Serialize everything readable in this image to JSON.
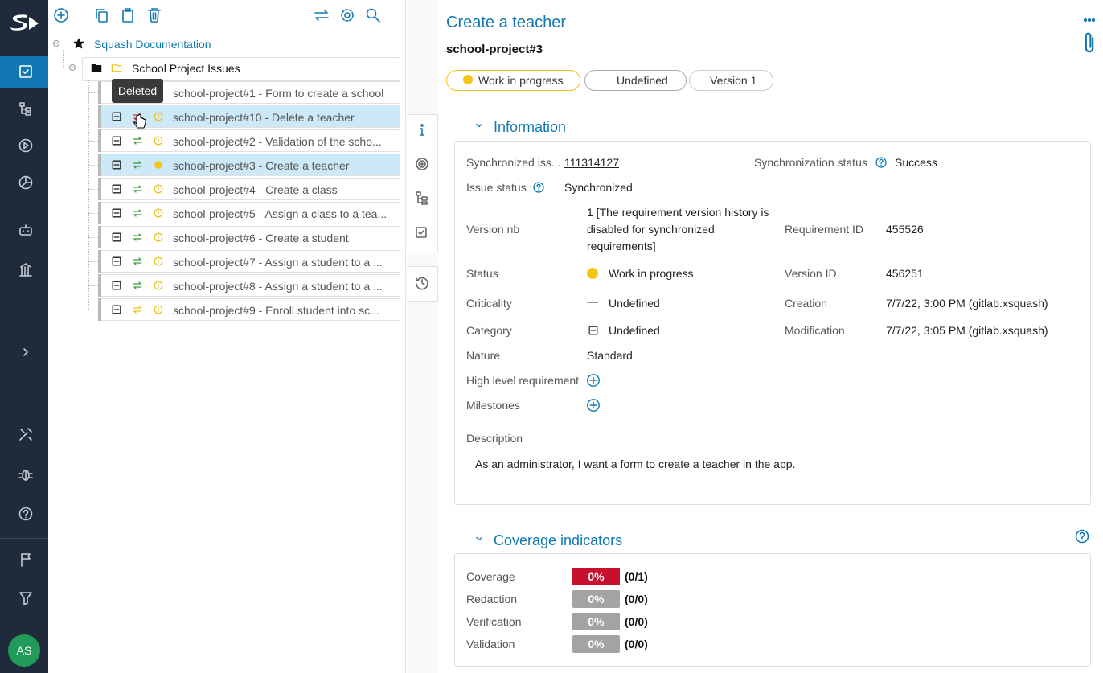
{
  "sidebar": {
    "avatar": "AS"
  },
  "tree": {
    "root": "Squash Documentation",
    "folder": "School Project Issues",
    "tooltip": "Deleted",
    "items": [
      "school-project#1 - Form to create a school",
      "school-project#10 - Delete a teacher",
      "school-project#2 - Validation of the scho...",
      "school-project#3 - Create a teacher",
      "school-project#4 - Create a class",
      "school-project#5 - Assign a class to a tea...",
      "school-project#6 - Create a student",
      "school-project#7 - Assign a student to a ...",
      "school-project#8 - Assign a student to a ...",
      "school-project#9 - Enroll student into sc..."
    ]
  },
  "header": {
    "title": "Create a teacher",
    "reference": "school-project#3",
    "chips": [
      "Work in progress",
      "Undefined",
      "Version 1"
    ]
  },
  "information": {
    "title": "Information",
    "left": [
      {
        "label": "Synchronized iss...",
        "value": "111314127"
      },
      {
        "label": "Issue status",
        "value": "Synchronized"
      },
      {
        "label": "Version nb",
        "value": "1 [The requirement version history is disabled for synchronized requirements]"
      },
      {
        "label": "Status",
        "value": "Work in progress"
      },
      {
        "label": "Criticality",
        "value": "Undefined"
      },
      {
        "label": "Category",
        "value": "Undefined"
      },
      {
        "label": "Nature",
        "value": "Standard"
      },
      {
        "label": "High level requirement"
      },
      {
        "label": "Milestones"
      }
    ],
    "right": [
      {
        "label": "Synchronization status",
        "value": "Success"
      },
      {
        "label": "Requirement ID",
        "value": "455526"
      },
      {
        "label": "Version ID",
        "value": "456251"
      },
      {
        "label": "Creation",
        "value": "7/7/22, 3:00 PM (gitlab.xsquash)"
      },
      {
        "label": "Modification",
        "value": "7/7/22, 3:05 PM (gitlab.xsquash)"
      }
    ],
    "description_label": "Description",
    "description": "As an administrator, I want a form to create a teacher in the app."
  },
  "coverage": {
    "title": "Coverage indicators",
    "rows": [
      {
        "label": "Coverage",
        "percent": "0%",
        "ratio": "(0/1)"
      },
      {
        "label": "Redaction",
        "percent": "0%",
        "ratio": "(0/0)"
      },
      {
        "label": "Verification",
        "percent": "0%",
        "ratio": "(0/0)"
      },
      {
        "label": "Validation",
        "percent": "0%",
        "ratio": "(0/0)"
      }
    ]
  }
}
